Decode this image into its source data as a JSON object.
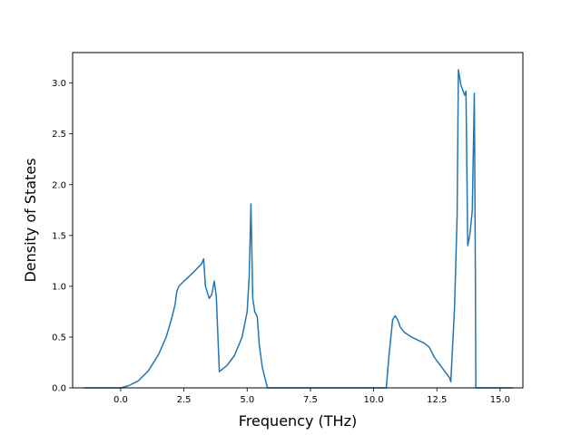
{
  "chart_data": {
    "type": "line",
    "title": "",
    "xlabel": "Frequency (THz)",
    "ylabel": "Density of States",
    "xlim": [
      -1.9,
      15.9
    ],
    "ylim": [
      0,
      3.3
    ],
    "grid": false,
    "xticks": [
      0.0,
      2.5,
      5.0,
      7.5,
      10.0,
      12.5,
      15.0
    ],
    "xtick_labels": [
      "0.0",
      "2.5",
      "5.0",
      "7.5",
      "10.0",
      "12.5",
      "15.0"
    ],
    "yticks": [
      0.0,
      0.5,
      1.0,
      1.5,
      2.0,
      2.5,
      3.0
    ],
    "ytick_labels": [
      "0.0",
      "0.5",
      "1.0",
      "1.5",
      "2.0",
      "2.5",
      "3.0"
    ],
    "colors": {
      "line": "#1f77b4"
    },
    "series": [
      {
        "x": [
          -1.45,
          0.0,
          0.3,
          0.7,
          1.1,
          1.5,
          1.8,
          2.0,
          2.15,
          2.22,
          2.3,
          2.5,
          2.8,
          3.0,
          3.2,
          3.28,
          3.35,
          3.5,
          3.6,
          3.7,
          3.78,
          3.9,
          4.2,
          4.5,
          4.8,
          5.0,
          5.08,
          5.15,
          5.22,
          5.3,
          5.4,
          5.48,
          5.6,
          5.8,
          6.5,
          8.0,
          10.5,
          10.6,
          10.75,
          10.85,
          10.95,
          11.05,
          11.2,
          11.5,
          12.0,
          12.2,
          12.4,
          12.7,
          13.0,
          13.05,
          13.2,
          13.3,
          13.35,
          13.45,
          13.6,
          13.65,
          13.72,
          13.8,
          13.9,
          13.98,
          14.02,
          14.04,
          15.5
        ],
        "y": [
          0.0,
          0.0,
          0.02,
          0.07,
          0.17,
          0.33,
          0.5,
          0.67,
          0.82,
          0.95,
          1.0,
          1.05,
          1.12,
          1.17,
          1.22,
          1.27,
          1.0,
          0.88,
          0.92,
          1.05,
          0.9,
          0.16,
          0.22,
          0.32,
          0.5,
          0.75,
          1.1,
          1.81,
          0.88,
          0.75,
          0.7,
          0.42,
          0.2,
          0.0,
          0.0,
          0.0,
          0.0,
          0.3,
          0.67,
          0.71,
          0.67,
          0.6,
          0.55,
          0.5,
          0.44,
          0.4,
          0.3,
          0.2,
          0.1,
          0.06,
          0.8,
          1.7,
          3.13,
          2.98,
          2.88,
          2.92,
          1.4,
          1.5,
          1.75,
          2.9,
          1.2,
          0.0,
          0.0
        ]
      }
    ]
  }
}
